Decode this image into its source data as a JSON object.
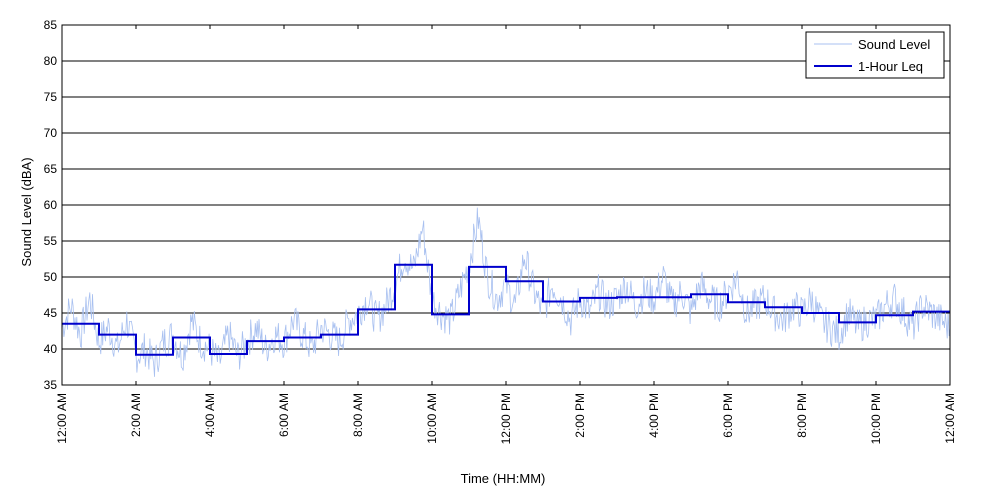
{
  "chart_data": {
    "type": "line",
    "title": "",
    "xlabel": "Time (HH:MM)",
    "ylabel": "Sound Level (dBA)",
    "xlim": [
      0,
      24
    ],
    "ylim": [
      35,
      85
    ],
    "y_ticks": [
      35,
      40,
      45,
      50,
      55,
      60,
      65,
      70,
      75,
      80,
      85
    ],
    "y_grid": true,
    "x_ticks": [
      0,
      2,
      4,
      6,
      8,
      10,
      12,
      14,
      16,
      18,
      20,
      22,
      24
    ],
    "x_tick_labels": [
      "12:00 AM",
      "2:00 AM",
      "4:00 AM",
      "6:00 AM",
      "8:00 AM",
      "10:00 AM",
      "12:00 PM",
      "2:00 PM",
      "4:00 PM",
      "6:00 PM",
      "8:00 PM",
      "10:00 PM",
      "12:00 AM"
    ],
    "legend_position": "top-right",
    "series": [
      {
        "name": "Sound Level",
        "style": "thin-line",
        "color": "#a8c0f0",
        "x_hours": [
          0,
          0.25,
          0.5,
          0.75,
          1,
          1.25,
          1.5,
          1.75,
          2,
          2.25,
          2.5,
          2.75,
          3,
          3.25,
          3.5,
          3.75,
          4,
          4.25,
          4.5,
          4.75,
          5,
          5.25,
          5.5,
          5.75,
          6,
          6.25,
          6.5,
          6.75,
          7,
          7.25,
          7.5,
          7.75,
          8,
          8.25,
          8.5,
          8.75,
          9,
          9.25,
          9.5,
          9.75,
          10,
          10.25,
          10.5,
          10.75,
          11,
          11.25,
          11.5,
          11.75,
          12,
          12.25,
          12.5,
          12.75,
          13,
          13.25,
          13.5,
          13.75,
          14,
          14.25,
          14.5,
          14.75,
          15,
          15.25,
          15.5,
          15.75,
          16,
          16.25,
          16.5,
          16.75,
          17,
          17.25,
          17.5,
          17.75,
          18,
          18.25,
          18.5,
          18.75,
          19,
          19.25,
          19.5,
          19.75,
          20,
          20.25,
          20.5,
          20.75,
          21,
          21.25,
          21.5,
          21.75,
          22,
          22.25,
          22.5,
          22.75,
          23,
          23.25,
          23.5,
          23.75,
          24
        ],
        "values": [
          43,
          46,
          42,
          47,
          41,
          43,
          40,
          44,
          39,
          40,
          38,
          41,
          42,
          39,
          44,
          41,
          40,
          38,
          42,
          39,
          41,
          43,
          40,
          42,
          41,
          44,
          42,
          40,
          43,
          42,
          41,
          44,
          45,
          47,
          44,
          46,
          49,
          53,
          51,
          57,
          47,
          45,
          44,
          48,
          52,
          58,
          50,
          47,
          49,
          46,
          53,
          48,
          45,
          49,
          47,
          44,
          47,
          45,
          48,
          46,
          47,
          49,
          46,
          48,
          47,
          50,
          46,
          48,
          45,
          49,
          47,
          46,
          48,
          50,
          45,
          46,
          47,
          45,
          44,
          46,
          45,
          47,
          44,
          43,
          42,
          45,
          43,
          44,
          44,
          46,
          47,
          45,
          43,
          46,
          45,
          44,
          43
        ]
      },
      {
        "name": "1-Hour Leq",
        "style": "step",
        "color": "#0000cc",
        "hour_start": [
          0,
          1,
          2,
          3,
          4,
          5,
          6,
          7,
          8,
          9,
          10,
          11,
          12,
          13,
          14,
          15,
          16,
          17,
          18,
          19,
          20,
          21,
          22,
          23
        ],
        "values": [
          43.5,
          42.0,
          39.2,
          41.6,
          39.3,
          41.1,
          41.6,
          42.0,
          45.5,
          51.7,
          44.8,
          51.4,
          49.4,
          46.6,
          47.1,
          47.2,
          47.2,
          47.6,
          46.5,
          45.8,
          45.0,
          43.7,
          44.7,
          45.2
        ]
      }
    ]
  }
}
